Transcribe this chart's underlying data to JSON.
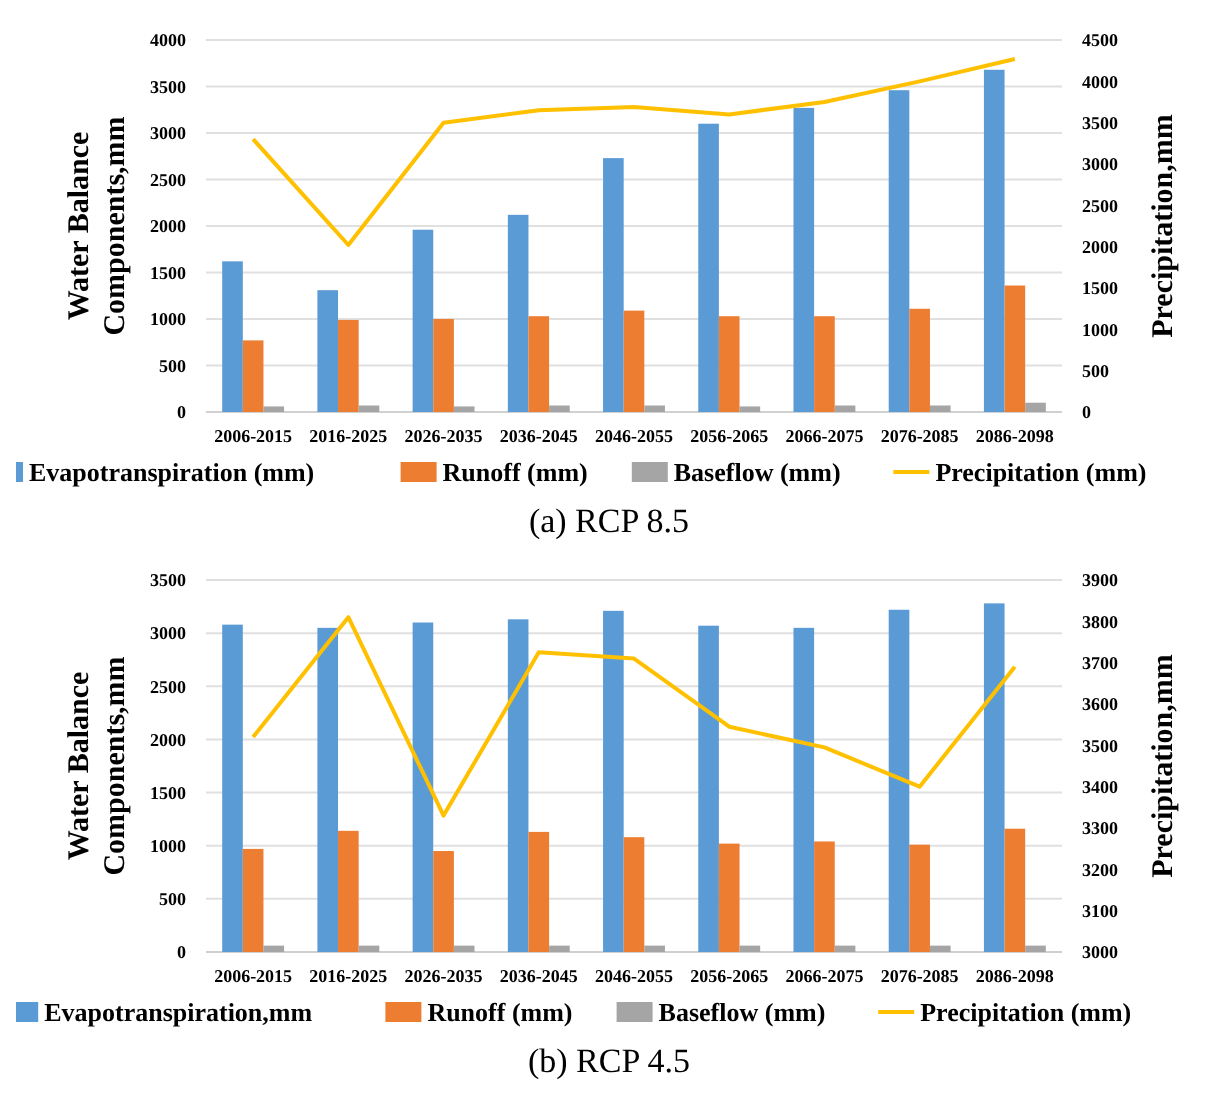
{
  "chart_data": [
    {
      "type": "bar",
      "title": "(a) RCP 8.5",
      "ylabel": "Water Balance Components,mm",
      "y2label": "Precipitation,mm",
      "categories": [
        "2006-2015",
        "2016-2025",
        "2026-2035",
        "2036-2045",
        "2046-2055",
        "2056-2065",
        "2066-2075",
        "2076-2085",
        "2086-2098"
      ],
      "series": [
        {
          "name": "Evapotranspiration (mm)",
          "color": "#5b9bd5",
          "values": [
            1620,
            1310,
            1960,
            2120,
            2730,
            3100,
            3270,
            3460,
            3680
          ]
        },
        {
          "name": "Runoff (mm)",
          "color": "#ed7d31",
          "values": [
            770,
            990,
            1000,
            1030,
            1090,
            1030,
            1030,
            1110,
            1360
          ]
        },
        {
          "name": "Baseflow (mm)",
          "color": "#a5a5a5",
          "values": [
            60,
            70,
            60,
            70,
            70,
            60,
            70,
            70,
            100
          ]
        },
        {
          "name": "Precipitation (mm)",
          "color": "#ffc000",
          "type": "line",
          "axis": "y2",
          "values": [
            3300,
            2020,
            3500,
            3650,
            3690,
            3600,
            3750,
            4000,
            4270
          ]
        }
      ],
      "ylim": [
        0,
        4000
      ],
      "yticks": [
        0,
        500,
        1000,
        1500,
        2000,
        2500,
        3000,
        3500,
        4000
      ],
      "y2lim": [
        0,
        4500
      ],
      "y2ticks": [
        0,
        500,
        1000,
        1500,
        2000,
        2500,
        3000,
        3500,
        4000,
        4500
      ],
      "grid": "y",
      "legend": "bottom",
      "marker": "none"
    },
    {
      "type": "bar",
      "title": "(b) RCP 4.5",
      "ylabel": "Water Balance Components,mm",
      "y2label": "Precipitation,mm",
      "categories": [
        "2006-2015",
        "2016-2025",
        "2026-2035",
        "2036-2045",
        "2046-2055",
        "2056-2065",
        "2066-2075",
        "2076-2085",
        "2086-2098"
      ],
      "series": [
        {
          "name": "Evapotranspiration,mm",
          "color": "#5b9bd5",
          "values": [
            3080,
            3050,
            3100,
            3130,
            3210,
            3070,
            3050,
            3220,
            3280
          ]
        },
        {
          "name": "Runoff (mm)",
          "color": "#ed7d31",
          "values": [
            970,
            1140,
            950,
            1130,
            1080,
            1020,
            1040,
            1010,
            1160
          ]
        },
        {
          "name": "Baseflow (mm)",
          "color": "#a5a5a5",
          "values": [
            60,
            60,
            60,
            60,
            60,
            60,
            60,
            60,
            60
          ]
        },
        {
          "name": "Precipitation (mm)",
          "color": "#ffc000",
          "type": "line",
          "axis": "y2",
          "values": [
            3520,
            3810,
            3330,
            3725,
            3710,
            3545,
            3495,
            3400,
            3690
          ]
        }
      ],
      "ylim": [
        0,
        3500
      ],
      "yticks": [
        0,
        500,
        1000,
        1500,
        2000,
        2500,
        3000,
        3500
      ],
      "y2lim": [
        3000,
        3900
      ],
      "y2ticks": [
        3000,
        3100,
        3200,
        3300,
        3400,
        3500,
        3600,
        3700,
        3800,
        3900
      ],
      "grid": "y",
      "legend": "bottom",
      "marker": "none"
    }
  ]
}
